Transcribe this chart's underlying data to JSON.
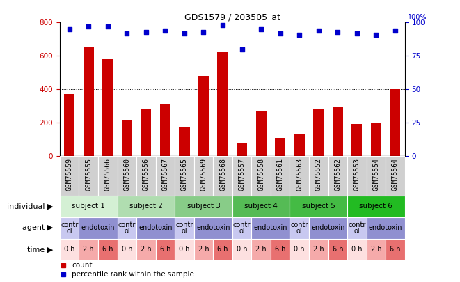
{
  "title": "GDS1579 / 203505_at",
  "samples": [
    "GSM75559",
    "GSM75555",
    "GSM75566",
    "GSM75560",
    "GSM75556",
    "GSM75567",
    "GSM75565",
    "GSM75569",
    "GSM75568",
    "GSM75557",
    "GSM75558",
    "GSM75561",
    "GSM75563",
    "GSM75552",
    "GSM75562",
    "GSM75553",
    "GSM75554",
    "GSM75564"
  ],
  "counts": [
    370,
    650,
    580,
    215,
    280,
    310,
    170,
    480,
    620,
    80,
    270,
    110,
    130,
    280,
    295,
    190,
    195,
    400
  ],
  "percentiles": [
    95,
    97,
    97,
    92,
    93,
    94,
    92,
    93,
    98,
    80,
    95,
    92,
    91,
    94,
    93,
    92,
    91,
    94
  ],
  "ylim_left": [
    0,
    800
  ],
  "ylim_right": [
    0,
    100
  ],
  "yticks_left": [
    0,
    200,
    400,
    600,
    800
  ],
  "yticks_right": [
    0,
    25,
    50,
    75,
    100
  ],
  "bar_color": "#cc0000",
  "dot_color": "#0000cc",
  "subjects": [
    {
      "label": "subject 1",
      "start": 0,
      "end": 3,
      "color": "#d4f0d4"
    },
    {
      "label": "subject 2",
      "start": 3,
      "end": 6,
      "color": "#b0ddb0"
    },
    {
      "label": "subject 3",
      "start": 6,
      "end": 9,
      "color": "#88cc88"
    },
    {
      "label": "subject 4",
      "start": 9,
      "end": 12,
      "color": "#55bb55"
    },
    {
      "label": "subject 5",
      "start": 12,
      "end": 15,
      "color": "#44bb44"
    },
    {
      "label": "subject 6",
      "start": 15,
      "end": 18,
      "color": "#22bb22"
    }
  ],
  "agents": [
    {
      "label": "contr\nol",
      "start": 0,
      "end": 1,
      "color": "#c8c8f0"
    },
    {
      "label": "endotoxin",
      "start": 1,
      "end": 3,
      "color": "#9090d0"
    },
    {
      "label": "contr\nol",
      "start": 3,
      "end": 4,
      "color": "#c8c8f0"
    },
    {
      "label": "endotoxin",
      "start": 4,
      "end": 6,
      "color": "#9090d0"
    },
    {
      "label": "contr\nol",
      "start": 6,
      "end": 7,
      "color": "#c8c8f0"
    },
    {
      "label": "endotoxin",
      "start": 7,
      "end": 9,
      "color": "#9090d0"
    },
    {
      "label": "contr\nol",
      "start": 9,
      "end": 10,
      "color": "#c8c8f0"
    },
    {
      "label": "endotoxin",
      "start": 10,
      "end": 12,
      "color": "#9090d0"
    },
    {
      "label": "contr\nol",
      "start": 12,
      "end": 13,
      "color": "#c8c8f0"
    },
    {
      "label": "endotoxin",
      "start": 13,
      "end": 15,
      "color": "#9090d0"
    },
    {
      "label": "contr\nol",
      "start": 15,
      "end": 16,
      "color": "#c8c8f0"
    },
    {
      "label": "endotoxin",
      "start": 16,
      "end": 18,
      "color": "#9090d0"
    }
  ],
  "times": [
    {
      "label": "0 h",
      "start": 0,
      "end": 1,
      "color": "#fde0e0"
    },
    {
      "label": "2 h",
      "start": 1,
      "end": 2,
      "color": "#f5aaaa"
    },
    {
      "label": "6 h",
      "start": 2,
      "end": 3,
      "color": "#e87070"
    },
    {
      "label": "0 h",
      "start": 3,
      "end": 4,
      "color": "#fde0e0"
    },
    {
      "label": "2 h",
      "start": 4,
      "end": 5,
      "color": "#f5aaaa"
    },
    {
      "label": "6 h",
      "start": 5,
      "end": 6,
      "color": "#e87070"
    },
    {
      "label": "0 h",
      "start": 6,
      "end": 7,
      "color": "#fde0e0"
    },
    {
      "label": "2 h",
      "start": 7,
      "end": 8,
      "color": "#f5aaaa"
    },
    {
      "label": "6 h",
      "start": 8,
      "end": 9,
      "color": "#e87070"
    },
    {
      "label": "0 h",
      "start": 9,
      "end": 10,
      "color": "#fde0e0"
    },
    {
      "label": "2 h",
      "start": 10,
      "end": 11,
      "color": "#f5aaaa"
    },
    {
      "label": "6 h",
      "start": 11,
      "end": 12,
      "color": "#e87070"
    },
    {
      "label": "0 h",
      "start": 12,
      "end": 13,
      "color": "#fde0e0"
    },
    {
      "label": "2 h",
      "start": 13,
      "end": 14,
      "color": "#f5aaaa"
    },
    {
      "label": "6 h",
      "start": 14,
      "end": 15,
      "color": "#e87070"
    },
    {
      "label": "0 h",
      "start": 15,
      "end": 16,
      "color": "#fde0e0"
    },
    {
      "label": "2 h",
      "start": 16,
      "end": 17,
      "color": "#f5aaaa"
    },
    {
      "label": "6 h",
      "start": 17,
      "end": 18,
      "color": "#e87070"
    }
  ],
  "sample_bg": "#d0d0d0",
  "legend_count_color": "#cc0000",
  "legend_pct_color": "#0000cc",
  "bg_color": "#ffffff",
  "label_fontsize": 7.5,
  "tick_fontsize": 7.5,
  "row_label_fontsize": 8,
  "sample_fontsize": 7
}
